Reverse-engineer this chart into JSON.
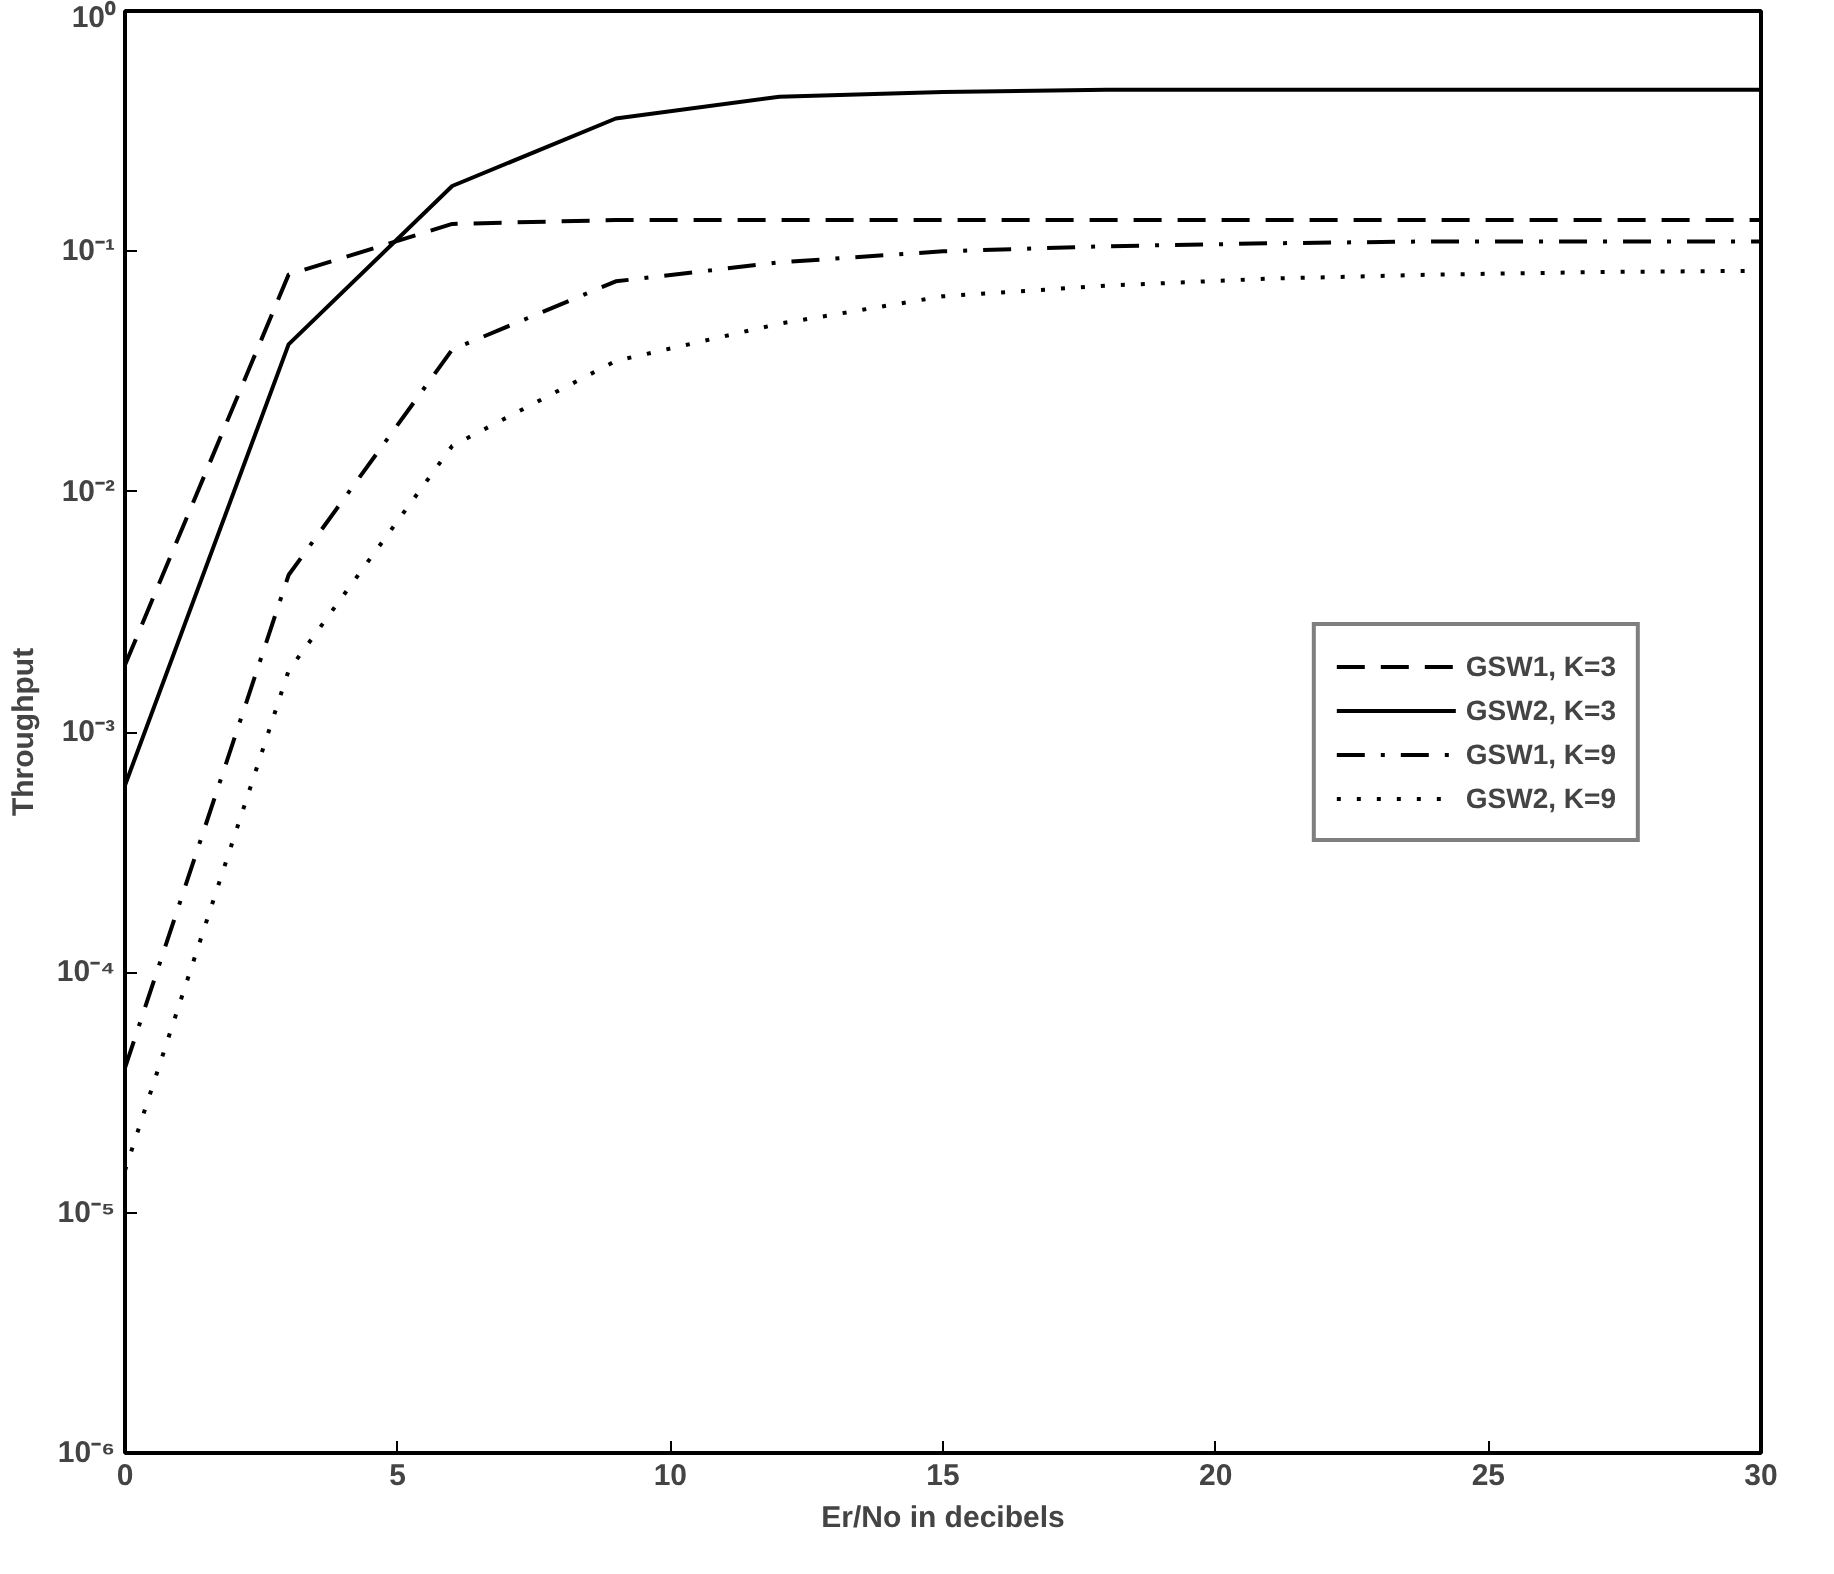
{
  "chart_data": {
    "type": "line",
    "xlabel": "Er/No in decibels",
    "ylabel": "Throughput",
    "log": "y",
    "x": [
      0,
      3,
      6,
      9,
      12,
      15,
      18,
      21,
      24,
      27,
      30
    ],
    "xlim": [
      0,
      30
    ],
    "xticks": [
      0,
      5,
      10,
      15,
      20,
      25,
      30
    ],
    "ylim": [
      1e-06,
      1
    ],
    "yticks": [
      {
        "value": 1e-06,
        "label": "10⁻⁶"
      },
      {
        "value": 1e-05,
        "label": "10⁻⁵"
      },
      {
        "value": 0.0001,
        "label": "10⁻⁴"
      },
      {
        "value": 0.001,
        "label": "10⁻³"
      },
      {
        "value": 0.01,
        "label": "10⁻²"
      },
      {
        "value": 0.1,
        "label": "10⁻¹"
      },
      {
        "value": 1,
        "label": "10⁰"
      }
    ],
    "grid": false,
    "legend": "right",
    "marker": "none",
    "series": [
      {
        "name": "GSW1, K=3",
        "color": "#000000",
        "line_style": "dashed",
        "values": [
          0.0019,
          0.08,
          0.13,
          0.135,
          0.135,
          0.135,
          0.135,
          0.135,
          0.135,
          0.135,
          0.135
        ]
      },
      {
        "name": "GSW2, K=3",
        "color": "#000000",
        "line_style": "solid",
        "values": [
          0.0006,
          0.041,
          0.187,
          0.357,
          0.44,
          0.46,
          0.47,
          0.47,
          0.47,
          0.47,
          0.47
        ]
      },
      {
        "name": "GSW1, K=9",
        "color": "#000000",
        "line_style": "dashdot",
        "values": [
          4e-05,
          0.0045,
          0.039,
          0.075,
          0.09,
          0.1,
          0.105,
          0.108,
          0.11,
          0.11,
          0.11
        ]
      },
      {
        "name": "GSW2, K=9",
        "color": "#000000",
        "line_style": "dotted",
        "values": [
          1.5e-05,
          0.0018,
          0.0155,
          0.035,
          0.05,
          0.065,
          0.072,
          0.077,
          0.08,
          0.082,
          0.083
        ]
      }
    ]
  }
}
